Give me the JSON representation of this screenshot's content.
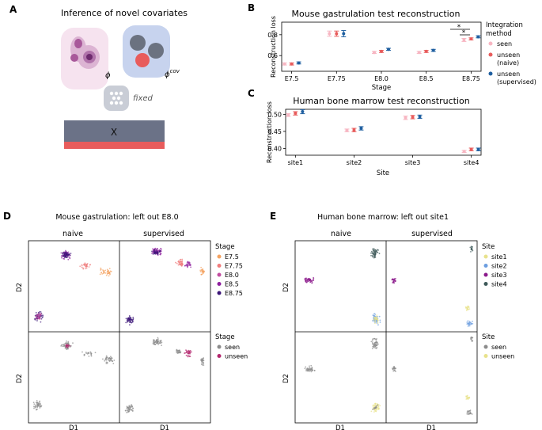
{
  "panels": {
    "A": {
      "letter": "A",
      "title": "Inference of novel covariates",
      "phi": "ϕ",
      "phi_cov": "ϕ",
      "phi_cov_sup": "cov",
      "fixed_label": "fixed",
      "x_label": "X"
    },
    "B": {
      "letter": "B"
    },
    "C": {
      "letter": "C"
    },
    "D": {
      "letter": "D",
      "title": "Mouse gastrulation: left out E8.0",
      "col1": "naive",
      "col2": "supervised",
      "ylabel": "D2",
      "xlabel1": "D1",
      "xlabel2": "D1",
      "legend1": {
        "title": "Stage",
        "items": [
          "E7.5",
          "E7.75",
          "E8.0",
          "E8.5",
          "E8.75"
        ],
        "colors": [
          "#f4a261",
          "#f07c7c",
          "#c24ca0",
          "#8e1f9e",
          "#3b1478"
        ]
      },
      "legend2": {
        "title": "Stage",
        "items": [
          "seen",
          "unseen"
        ],
        "colors": [
          "#8c8c8c",
          "#b3276e"
        ]
      }
    },
    "E": {
      "letter": "E",
      "title": "Human bone marrow: left out site1",
      "col1": "naive",
      "col2": "supervised",
      "ylabel": "D2",
      "xlabel1": "D1",
      "xlabel2": "D1",
      "legend1": {
        "title": "Site",
        "items": [
          "site1",
          "site2",
          "site3",
          "site4"
        ],
        "colors": [
          "#e8e28c",
          "#6c9ee0",
          "#8b1a8b",
          "#3e5a5a"
        ]
      },
      "legend2": {
        "title": "Site",
        "items": [
          "seen",
          "unseen"
        ],
        "colors": [
          "#8c8c8c",
          "#e8e28c"
        ]
      }
    }
  },
  "chart_data": [
    {
      "type": "scatter",
      "title": "Mouse gastrulation test reconstruction",
      "xlabel": "Stage",
      "ylabel": "Reconstruction loss",
      "categories": [
        "E7.5",
        "E7.75",
        "E8.0",
        "E8.5",
        "E8.75"
      ],
      "yticks": [
        "0.6",
        "0.8"
      ],
      "ylim": [
        0.45,
        0.92
      ],
      "legend_title": "Integration\nmethod",
      "series": [
        {
          "name": "seen",
          "color": "#f7b6c2",
          "values": [
            0.52,
            0.81,
            0.63,
            0.63,
            0.75
          ],
          "err": [
            0.01,
            0.025,
            0.01,
            0.01,
            0.015
          ]
        },
        {
          "name": "unseen\n(naive)",
          "color": "#e85c5c",
          "values": [
            0.52,
            0.81,
            0.64,
            0.64,
            0.76
          ],
          "err": [
            0.01,
            0.025,
            0.01,
            0.01,
            0.01
          ]
        },
        {
          "name": "unseen\n(supervised)",
          "color": "#1f5fa0",
          "values": [
            0.53,
            0.81,
            0.66,
            0.65,
            0.78
          ],
          "err": [
            0.01,
            0.03,
            0.01,
            0.01,
            0.01
          ]
        }
      ],
      "annotations": [
        "*",
        "*"
      ]
    },
    {
      "type": "scatter",
      "title": "Human bone marrow test reconstruction",
      "xlabel": "Site",
      "ylabel": "Reconstruction loss",
      "categories": [
        "site1",
        "site2",
        "site3",
        "site4"
      ],
      "yticks": [
        "0.40",
        "0.45",
        "0.50"
      ],
      "ylim": [
        0.38,
        0.515
      ],
      "series": [
        {
          "name": "seen",
          "color": "#f7b6c2",
          "values": [
            0.498,
            0.453,
            0.49,
            0.391
          ],
          "err": [
            0.004,
            0.004,
            0.005,
            0.003
          ]
        },
        {
          "name": "unseen\n(naive)",
          "color": "#e85c5c",
          "values": [
            0.503,
            0.454,
            0.492,
            0.397
          ],
          "err": [
            0.005,
            0.005,
            0.005,
            0.004
          ]
        },
        {
          "name": "unseen\n(supervised)",
          "color": "#1f5fa0",
          "values": [
            0.508,
            0.459,
            0.493,
            0.397
          ],
          "err": [
            0.006,
            0.005,
            0.005,
            0.004
          ]
        }
      ]
    }
  ]
}
